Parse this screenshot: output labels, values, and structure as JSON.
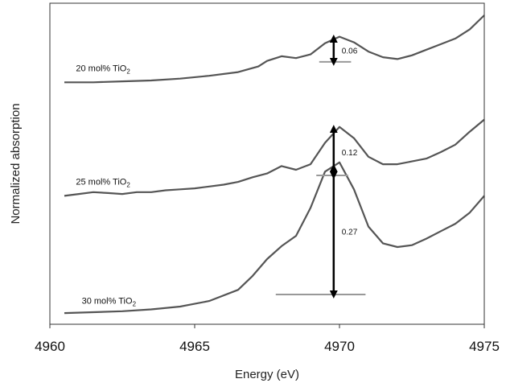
{
  "chart_data": {
    "type": "line",
    "title": "",
    "xlabel": "Energy (eV)",
    "ylabel": "Normalized absorption",
    "xlim": [
      4960,
      4975
    ],
    "xticks": [
      "4960",
      "4965",
      "4970",
      "4975"
    ],
    "yticks_shown": false,
    "grid": false,
    "legend": "none (inline series labels)",
    "colors": {
      "line": "#555555",
      "arrow": "#000000",
      "baseline": "#999999",
      "frame": "#333333"
    },
    "series": [
      {
        "name": "20 mol% TiO",
        "name_subscript": "2",
        "points": [
          [
            4960.5,
            2.6
          ],
          [
            4961.5,
            2.6
          ],
          [
            4962.5,
            2.61
          ],
          [
            4963.5,
            2.62
          ],
          [
            4964.5,
            2.64
          ],
          [
            4965.5,
            2.67
          ],
          [
            4966.5,
            2.71
          ],
          [
            4967.2,
            2.77
          ],
          [
            4967.5,
            2.83
          ],
          [
            4968.0,
            2.88
          ],
          [
            4968.5,
            2.86
          ],
          [
            4969.0,
            2.9
          ],
          [
            4969.5,
            3.02
          ],
          [
            4970.0,
            3.09
          ],
          [
            4970.5,
            3.03
          ],
          [
            4971.0,
            2.93
          ],
          [
            4971.5,
            2.87
          ],
          [
            4972.0,
            2.85
          ],
          [
            4972.5,
            2.89
          ],
          [
            4973.0,
            2.95
          ],
          [
            4973.5,
            3.01
          ],
          [
            4974.0,
            3.07
          ],
          [
            4974.5,
            3.17
          ],
          [
            4975.0,
            3.32
          ]
        ],
        "peak_height": 0.06
      },
      {
        "name": "25 mol% TiO",
        "name_subscript": "2",
        "points": [
          [
            4960.5,
            1.38
          ],
          [
            4961.0,
            1.4
          ],
          [
            4961.5,
            1.42
          ],
          [
            4962.0,
            1.41
          ],
          [
            4962.5,
            1.4
          ],
          [
            4963.0,
            1.42
          ],
          [
            4963.5,
            1.42
          ],
          [
            4964.0,
            1.44
          ],
          [
            4964.5,
            1.45
          ],
          [
            4965.0,
            1.46
          ],
          [
            4965.5,
            1.48
          ],
          [
            4966.0,
            1.5
          ],
          [
            4966.5,
            1.53
          ],
          [
            4967.0,
            1.58
          ],
          [
            4967.5,
            1.62
          ],
          [
            4968.0,
            1.7
          ],
          [
            4968.5,
            1.66
          ],
          [
            4969.0,
            1.72
          ],
          [
            4969.5,
            1.95
          ],
          [
            4970.0,
            2.12
          ],
          [
            4970.5,
            2.0
          ],
          [
            4971.0,
            1.8
          ],
          [
            4971.5,
            1.72
          ],
          [
            4972.0,
            1.72
          ],
          [
            4972.5,
            1.75
          ],
          [
            4973.0,
            1.78
          ],
          [
            4973.5,
            1.85
          ],
          [
            4974.0,
            1.93
          ],
          [
            4974.5,
            2.07
          ],
          [
            4975.0,
            2.2
          ]
        ],
        "peak_height": 0.12
      },
      {
        "name": "30 mol% TiO",
        "name_subscript": "2",
        "points": [
          [
            4960.5,
            0.12
          ],
          [
            4961.5,
            0.13
          ],
          [
            4962.5,
            0.14
          ],
          [
            4963.5,
            0.16
          ],
          [
            4964.5,
            0.19
          ],
          [
            4965.5,
            0.25
          ],
          [
            4966.5,
            0.37
          ],
          [
            4967.0,
            0.52
          ],
          [
            4967.5,
            0.7
          ],
          [
            4968.0,
            0.84
          ],
          [
            4968.5,
            0.95
          ],
          [
            4969.0,
            1.25
          ],
          [
            4969.5,
            1.64
          ],
          [
            4970.0,
            1.74
          ],
          [
            4970.5,
            1.45
          ],
          [
            4971.0,
            1.05
          ],
          [
            4971.5,
            0.87
          ],
          [
            4972.0,
            0.83
          ],
          [
            4972.5,
            0.85
          ],
          [
            4973.0,
            0.92
          ],
          [
            4973.5,
            1.0
          ],
          [
            4974.0,
            1.08
          ],
          [
            4974.5,
            1.2
          ],
          [
            4975.0,
            1.38
          ]
        ],
        "peak_height": 0.27
      }
    ],
    "annotations": [
      {
        "series": "20 mol% TiO2",
        "label": "0.06",
        "x": 4969.8,
        "y_top": 3.07,
        "y_bottom": 2.82,
        "baseline_x": [
          4969.3,
          4970.4
        ]
      },
      {
        "series": "25 mol% TiO2",
        "label": "0.12",
        "x": 4969.8,
        "y_top": 2.1,
        "y_bottom": 1.6,
        "baseline_x": [
          4969.2,
          4970.3
        ]
      },
      {
        "series": "30 mol% TiO2",
        "label": "0.27",
        "x": 4969.8,
        "y_top": 1.68,
        "y_bottom": 0.32,
        "baseline_x": [
          4967.8,
          4970.9
        ]
      }
    ]
  }
}
